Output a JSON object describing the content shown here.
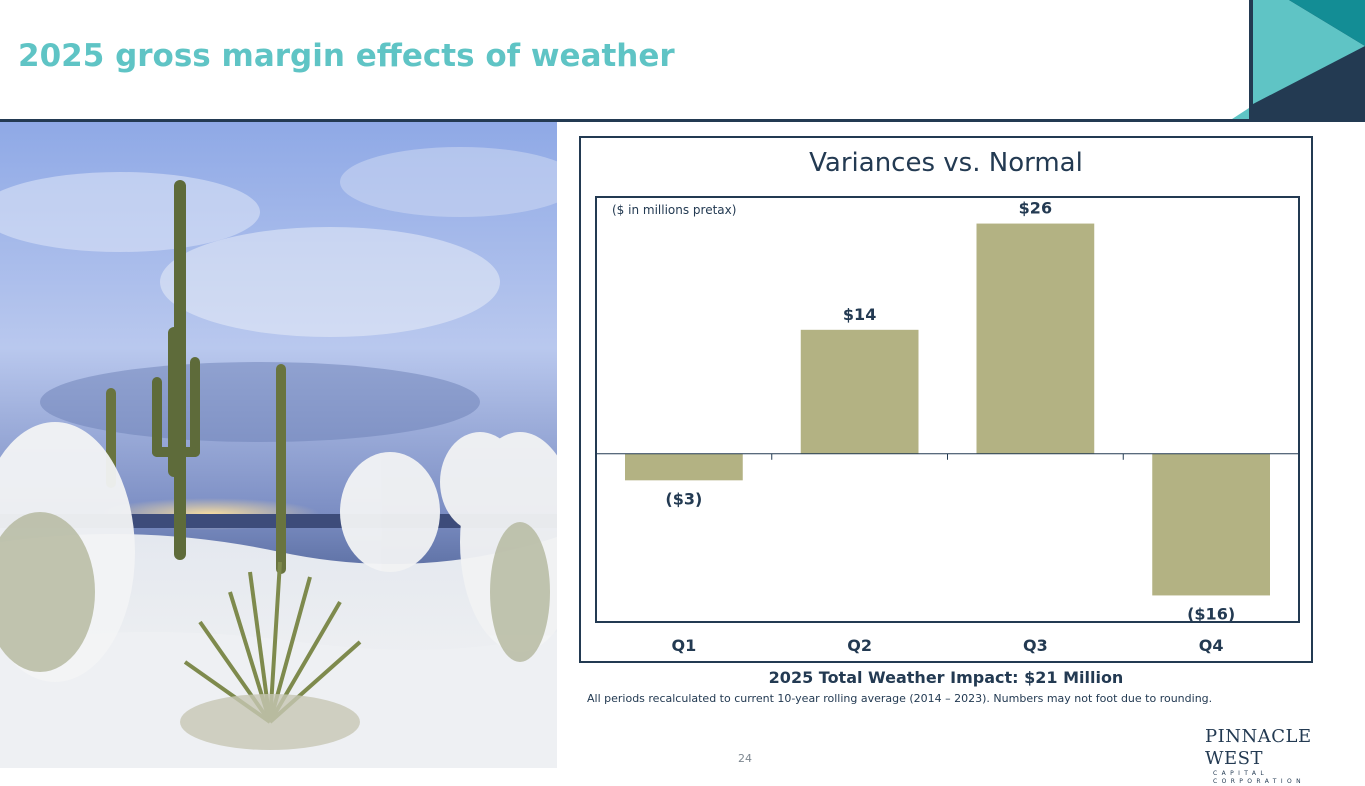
{
  "slide": {
    "title": "2025 gross margin effects of weather",
    "page_number": "24",
    "colors": {
      "title": "#5fc4c5",
      "navy": "#233a52",
      "bar": "#b3b283",
      "teal": "#5fc4c5",
      "teal_dark": "#138d95"
    }
  },
  "photo": {
    "icon": "snowy-desert-saguaro-image"
  },
  "chart_data": {
    "type": "bar",
    "title": "Variances vs. Normal",
    "unit_note": "($ in millions pretax)",
    "categories": [
      "Q1",
      "Q2",
      "Q3",
      "Q4"
    ],
    "values": [
      -3,
      14,
      26,
      -16
    ],
    "value_labels": [
      "($3)",
      "$14",
      "$26",
      "($16)"
    ],
    "ylim": [
      -19,
      29
    ],
    "xlabel": "",
    "ylabel": "",
    "grid": false,
    "legend": false
  },
  "summary": {
    "total": "2025 Total Weather Impact: $21 Million",
    "footnote": "All periods recalculated to current 10-year rolling average (2014 – 2023). Numbers may not foot due to rounding."
  },
  "logo": {
    "name": "PINNACLE WEST",
    "tagline": "CAPITAL CORPORATION"
  }
}
